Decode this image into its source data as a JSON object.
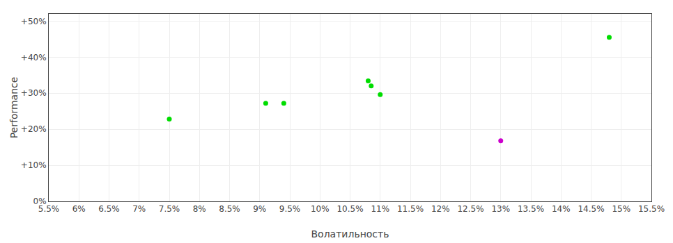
{
  "chart_data": {
    "type": "scatter",
    "xlabel": "Волатильность",
    "ylabel": "Performance",
    "series": [
      {
        "color": "#00dd00",
        "x": [
          0.075,
          0.091,
          0.094,
          0.108,
          0.1085,
          0.11,
          0.148
        ],
        "values": [
          0.228,
          0.272,
          0.272,
          0.334,
          0.32,
          0.296,
          0.455
        ]
      },
      {
        "color": "#cc00cc",
        "x": [
          0.13
        ],
        "values": [
          0.168
        ]
      }
    ],
    "xlim": [
      0.055,
      0.155
    ],
    "ylim": [
      0.0,
      0.52
    ],
    "xticks": [
      {
        "value": 0.055,
        "label": "5.5%"
      },
      {
        "value": 0.06,
        "label": "6%"
      },
      {
        "value": 0.065,
        "label": "6.5%"
      },
      {
        "value": 0.07,
        "label": "7%"
      },
      {
        "value": 0.075,
        "label": "7.5%"
      },
      {
        "value": 0.08,
        "label": "8%"
      },
      {
        "value": 0.085,
        "label": "8.5%"
      },
      {
        "value": 0.09,
        "label": "9%"
      },
      {
        "value": 0.095,
        "label": "9.5%"
      },
      {
        "value": 0.1,
        "label": "10%"
      },
      {
        "value": 0.105,
        "label": "10.5%"
      },
      {
        "value": 0.11,
        "label": "11%"
      },
      {
        "value": 0.115,
        "label": "11.5%"
      },
      {
        "value": 0.12,
        "label": "12%"
      },
      {
        "value": 0.125,
        "label": "12.5%"
      },
      {
        "value": 0.13,
        "label": "13%"
      },
      {
        "value": 0.135,
        "label": "13.5%"
      },
      {
        "value": 0.14,
        "label": "14%"
      },
      {
        "value": 0.145,
        "label": "14.5%"
      },
      {
        "value": 0.15,
        "label": "15%"
      },
      {
        "value": 0.155,
        "label": "15.5%"
      }
    ],
    "yticks": [
      {
        "value": 0.0,
        "label": "0%"
      },
      {
        "value": 0.1,
        "label": "+10%"
      },
      {
        "value": 0.2,
        "label": "+20%"
      },
      {
        "value": 0.3,
        "label": "+30%"
      },
      {
        "value": 0.4,
        "label": "+40%"
      },
      {
        "value": 0.5,
        "label": "+50%"
      }
    ],
    "grid": true
  }
}
